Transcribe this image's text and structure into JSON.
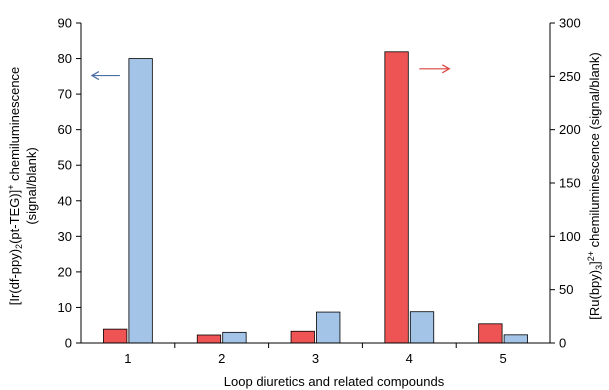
{
  "chart_data": {
    "type": "bar",
    "categories": [
      "1",
      "2",
      "3",
      "4",
      "5"
    ],
    "xlabel": "Loop diuretics and related compounds",
    "y_left": {
      "label_line1_a": "[Ir(df-ppy)",
      "label_line1_sub": "2",
      "label_line1_b": "(pt-TEG)]",
      "label_line1_sup": "+",
      "label_line1_c": " chemiluminescence",
      "label_line2": "(signal/blank)",
      "ylim": [
        0,
        90
      ],
      "ticks": [
        "0",
        "10",
        "20",
        "30",
        "40",
        "50",
        "60",
        "70",
        "80",
        "90"
      ]
    },
    "y_right": {
      "label_a": "[Ru(bpy)",
      "label_sub": "3",
      "label_b": "]",
      "label_sup": "2+",
      "label_c": " chemiluminescence (signal/blank)",
      "ylim": [
        0,
        300
      ],
      "ticks": [
        "0",
        "50",
        "100",
        "150",
        "200",
        "250",
        "300"
      ]
    },
    "series": [
      {
        "axis": "right",
        "color": "#ef5454",
        "values": [
          13,
          7.5,
          11,
          273,
          18
        ]
      },
      {
        "axis": "left",
        "color": "#a3c4e6",
        "values": [
          80,
          3,
          8.7,
          8.8,
          2.3
        ]
      }
    ],
    "arrows": [
      {
        "series": 1,
        "direction": "left",
        "color": "#4a6fa5"
      },
      {
        "series": 0,
        "direction": "right",
        "color": "#d9453f"
      }
    ]
  }
}
